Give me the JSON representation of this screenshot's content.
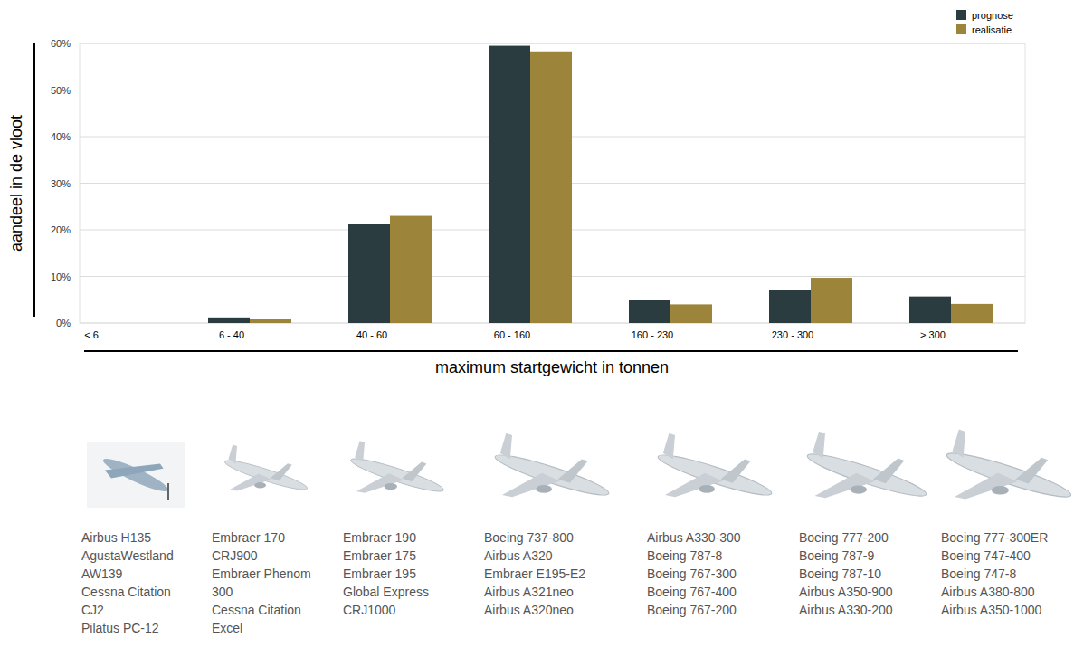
{
  "chart_data": {
    "type": "bar",
    "x_label": "maximum startgewicht in tonnen",
    "y_label": "aandeel in de vloot",
    "categories": [
      "< 6",
      "6 - 40",
      "40 - 60",
      "60 - 160",
      "160 - 230",
      "230 - 300",
      "> 300"
    ],
    "series": [
      {
        "name": "prognose",
        "color": "#2b3c40",
        "values": [
          0,
          1.2,
          21.3,
          59.5,
          5.0,
          7.0,
          5.7
        ]
      },
      {
        "name": "realisatie",
        "color": "#9c853b",
        "values": [
          0,
          0.8,
          23.0,
          58.3,
          4.0,
          9.7,
          4.1
        ]
      }
    ],
    "ylim": [
      0,
      60
    ],
    "yticks": [
      {
        "value": 0,
        "label": "0%"
      },
      {
        "value": 10,
        "label": "10%"
      },
      {
        "value": 20,
        "label": "20%"
      },
      {
        "value": 30,
        "label": "30%"
      },
      {
        "value": 40,
        "label": "40%"
      },
      {
        "value": 50,
        "label": "50%"
      },
      {
        "value": 60,
        "label": "60%"
      }
    ],
    "grid": true,
    "legend": "top-right"
  },
  "aircraft_examples": [
    [
      "Airbus H135",
      "AgustaWestland AW139",
      "Cessna Citation CJ2",
      "Pilatus PC-12"
    ],
    [
      "Embraer 170",
      "CRJ900",
      "Embraer Phenom 300",
      "Cessna Citation Excel"
    ],
    [
      "Embraer 190",
      "Embraer 175",
      "Embraer 195",
      "Global Express",
      "CRJ1000"
    ],
    [
      "Boeing 737-800",
      "Airbus A320",
      "Embraer E195-E2",
      "Airbus A321neo",
      "Airbus A320neo"
    ],
    [
      "Airbus A330-300",
      "Boeing 787-8",
      "Boeing 767-300",
      "Boeing 767-400",
      "Boeing 767-200"
    ],
    [
      "Boeing 777-200",
      "Boeing 787-9",
      "Boeing 787-10",
      "Airbus A350-900",
      "Airbus A330-200"
    ],
    [
      "Boeing 777-300ER",
      "Boeing 747-400",
      "Boeing 747-8",
      "Airbus A380-800",
      "Airbus A350-1000"
    ]
  ]
}
